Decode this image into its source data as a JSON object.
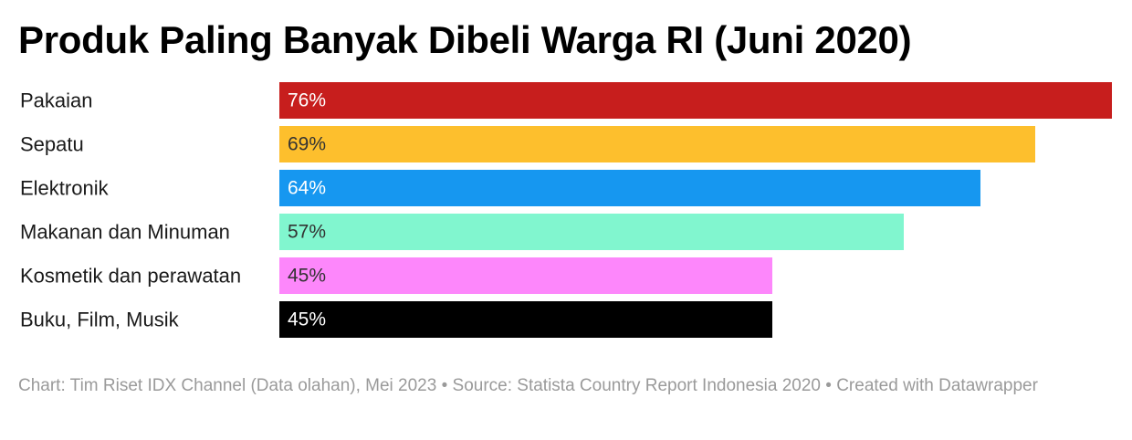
{
  "chart_data": {
    "type": "bar",
    "orientation": "horizontal",
    "title": "Produk Paling Banyak Dibeli Warga RI (Juni 2020)",
    "categories": [
      "Pakaian",
      "Sepatu",
      "Elektronik",
      "Makanan dan Minuman",
      "Kosmetik dan perawatan",
      "Buku, Film, Musik"
    ],
    "values": [
      76,
      69,
      64,
      57,
      45,
      45
    ],
    "value_labels": [
      "76%",
      "69%",
      "64%",
      "57%",
      "45%",
      "45%"
    ],
    "colors": [
      "#c71e1d",
      "#fdbf2d",
      "#1697f0",
      "#81f6cf",
      "#fd87fb",
      "#000000"
    ],
    "label_colors": [
      "#ffffff",
      "#333333",
      "#ffffff",
      "#333333",
      "#333333",
      "#ffffff"
    ],
    "xlim": [
      0,
      76
    ],
    "grid": false,
    "legend": "none"
  },
  "footer": {
    "text": "Chart: Tim Riset IDX Channel (Data olahan), Mei 2023 • Source: Statista Country Report Indonesia 2020 • Created with Datawrapper"
  }
}
